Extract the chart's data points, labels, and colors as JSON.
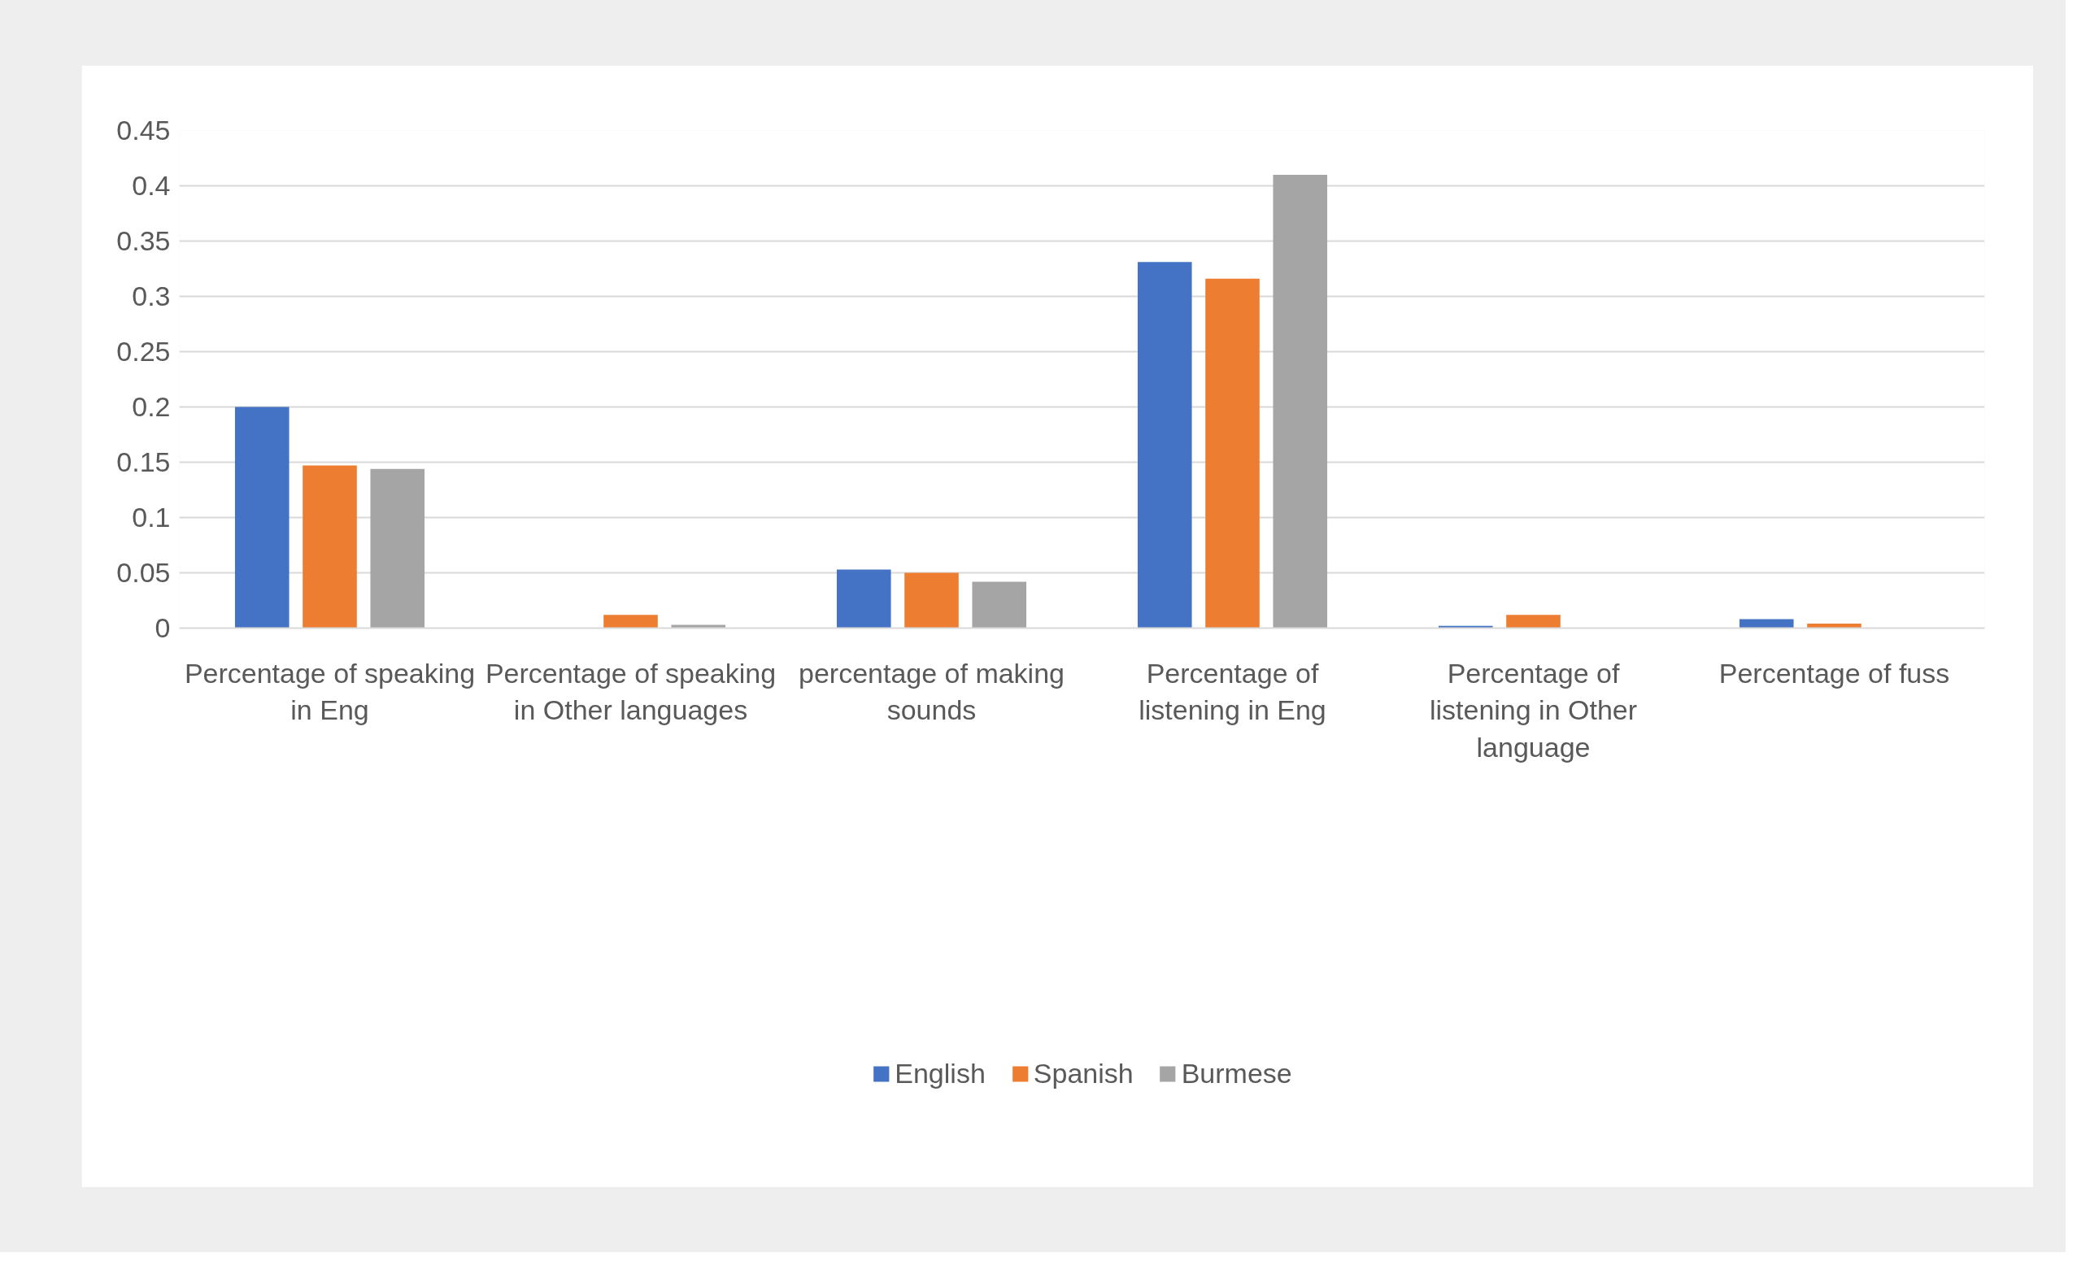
{
  "chart_data": {
    "type": "bar",
    "categories": [
      "Percentage of speaking in Eng",
      "Percentage of speaking in Other languages",
      "percentage of making sounds",
      "Percentage of listening in Eng",
      "Percentage of listening in Other language",
      "Percentage of fuss"
    ],
    "series": [
      {
        "name": "English",
        "color": "#4472c4",
        "values": [
          0.2,
          0,
          0.053,
          0.331,
          0.002,
          0.008
        ]
      },
      {
        "name": "Spanish",
        "color": "#ed7d31",
        "values": [
          0.147,
          0.012,
          0.05,
          0.316,
          0.012,
          0.004
        ]
      },
      {
        "name": "Burmese",
        "color": "#a5a5a5",
        "values": [
          0.144,
          0.003,
          0.042,
          0.41,
          0,
          0
        ]
      }
    ],
    "ylim": [
      0,
      0.45
    ],
    "yticks": [
      0,
      0.05,
      0.1,
      0.15,
      0.2,
      0.25,
      0.3,
      0.35,
      0.4,
      0.45
    ],
    "grid": "y",
    "legend": "bottom"
  }
}
